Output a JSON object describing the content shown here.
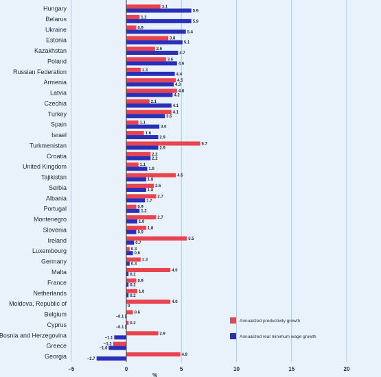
{
  "chart_data": {
    "type": "bar",
    "orientation": "horizontal",
    "categories": [
      "Hungary",
      "Belarus",
      "Ukraine",
      "Estonia",
      "Kazakhstan",
      "Poland",
      "Russian Federation",
      "Armenia",
      "Latvia",
      "Czechia",
      "Turkey",
      "Spain",
      "Israel",
      "Turkmenistan",
      "Croatia",
      "United Kingdom",
      "Tajikistan",
      "Serbia",
      "Albania",
      "Portugal",
      "Montenegro",
      "Slovenia",
      "Ireland",
      "Luxembourg",
      "Germany",
      "Malta",
      "France",
      "Netherlands",
      "Moldova, Republic of",
      "Belgium",
      "Cyprus",
      "Bosnia and Herzegovina",
      "Greece",
      "Georgia"
    ],
    "series": [
      {
        "name": "Annualized productivity growth",
        "color": "#e8434e",
        "values": [
          3.1,
          1.2,
          0.9,
          3.8,
          2.6,
          3.6,
          1.3,
          4.5,
          4.6,
          2.1,
          4.1,
          1.1,
          1.6,
          6.7,
          2.2,
          1.1,
          4.5,
          2.5,
          2.7,
          0.9,
          2.7,
          1.8,
          5.5,
          0.3,
          1.3,
          4.0,
          0.9,
          1.0,
          4.0,
          0.6,
          0.2,
          2.9,
          -1.2,
          4.9
        ],
        "labels": [
          "3.1",
          "1.2",
          "0.9",
          "3.8",
          "2.6",
          "3.6",
          "1.3",
          "4.5",
          "4.6",
          "2.1",
          "4.1",
          "1.1",
          "1.6",
          "6.7",
          "2.2",
          "1.1",
          "4.5",
          "2.5",
          "2.7",
          "0.9",
          "2.7",
          "1.8",
          "5.5",
          "0.3",
          "1.3",
          "4.0",
          "0.9",
          "1.0",
          "4.0",
          "0.6",
          "0.2",
          "2.9",
          "−1.2",
          "4.9"
        ]
      },
      {
        "name": "Annualized real minimum wage growth",
        "color": "#2a2fb8",
        "values": [
          5.9,
          5.9,
          5.4,
          5.1,
          4.7,
          4.6,
          4.4,
          4.3,
          4.2,
          4.1,
          3.5,
          3.0,
          2.9,
          2.9,
          2.2,
          1.9,
          1.8,
          1.8,
          1.7,
          1.2,
          1.0,
          0.9,
          0.7,
          0.6,
          0.3,
          0.2,
          0.2,
          0.2,
          0,
          -0.1,
          -0.1,
          -1.1,
          -1.6,
          -2.7
        ],
        "labels": [
          "5.9",
          "5.9",
          "5.4",
          "5.1",
          "4.7",
          "4.6",
          "4.4",
          "4.3",
          "4.2",
          "4.1",
          "3.5",
          "3.0",
          "2.9",
          "2.9",
          "2.2",
          "1.9",
          "1.8",
          "1.8",
          "1.7",
          "1.2",
          "1.0",
          "0.9",
          "0.7",
          "0.6",
          "0.3",
          "0.2",
          "0.2",
          "0.2",
          "0",
          "−0.1",
          "−0.1",
          "−1.1",
          "−1.6",
          "−2.7"
        ]
      }
    ],
    "xlim": [
      -5,
      20
    ],
    "xticks": [
      -5,
      0,
      5,
      10,
      15,
      20
    ],
    "xtick_labels": [
      "−5",
      "0",
      "5",
      "10",
      "15",
      "20"
    ],
    "xlabel": "%",
    "grid": "vertical",
    "legend_position": "bottom-right"
  },
  "colors": {
    "background": "#e9f2fb",
    "gridline": "#a9cbe8",
    "zero_line": "#3a3a3a"
  }
}
